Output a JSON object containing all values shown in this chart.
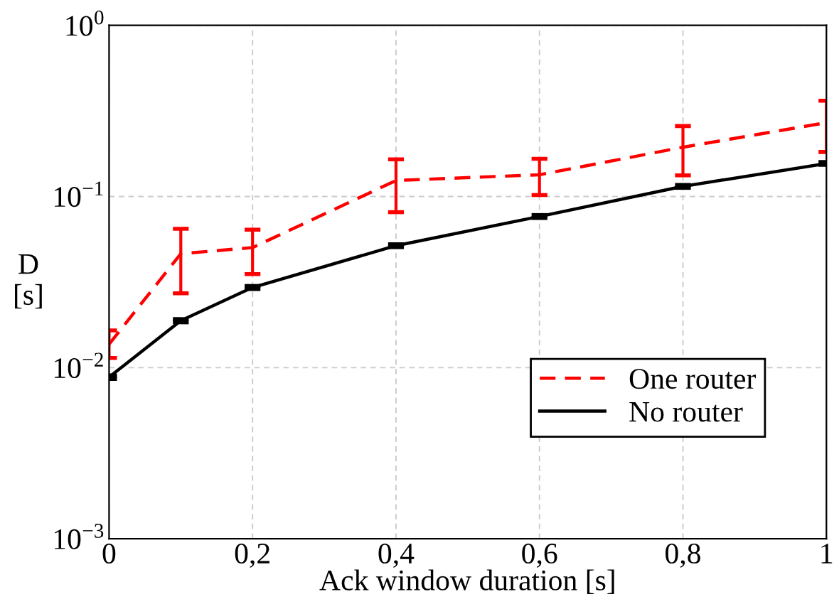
{
  "chart_data": {
    "type": "line",
    "xlabel": "Ack window duration [s]",
    "ylabel": "D\n[s]",
    "x": [
      0,
      0.1,
      0.2,
      0.4,
      0.6,
      0.8,
      1.0
    ],
    "series": [
      {
        "name": "One router",
        "color": "#ff0000",
        "line_style": "dashed",
        "values": [
          0.0137,
          0.0463,
          0.0503,
          0.124,
          0.134,
          0.194,
          0.27
        ],
        "errors": [
          [
            0.0114,
            0.0165
          ],
          [
            0.0272,
            0.0648
          ],
          [
            0.0352,
            0.064
          ],
          [
            0.081,
            0.165
          ],
          [
            0.102,
            0.166
          ],
          [
            0.133,
            0.258
          ],
          [
            0.182,
            0.363
          ]
        ]
      },
      {
        "name": "No router",
        "color": "#000000",
        "line_style": "solid",
        "values": [
          0.0088,
          0.0188,
          0.0294,
          0.0516,
          0.0764,
          0.1146,
          0.156
        ],
        "errors": [
          [
            0.0086,
            0.009
          ],
          [
            0.0184,
            0.0192
          ],
          [
            0.0288,
            0.03
          ],
          [
            0.0506,
            0.0526
          ],
          [
            0.0749,
            0.0779
          ],
          [
            0.1124,
            0.1168
          ],
          [
            0.153,
            0.159
          ]
        ]
      }
    ],
    "log": true,
    "xlim": [
      0,
      1
    ],
    "ylim": [
      0.001,
      1
    ],
    "xticks": [
      {
        "value": 0,
        "label": "0"
      },
      {
        "value": 0.2,
        "label": "0,2"
      },
      {
        "value": 0.4,
        "label": "0,4"
      },
      {
        "value": 0.6,
        "label": "0,6"
      },
      {
        "value": 0.8,
        "label": "0,8"
      },
      {
        "value": 1,
        "label": "1"
      }
    ],
    "yticks": [
      {
        "value": 0.001,
        "label": "10$^{−3}$"
      },
      {
        "value": 0.01,
        "label": "10$^{−2}$"
      },
      {
        "value": 0.1,
        "label": "10$^{−1}$"
      },
      {
        "value": 1,
        "label": "10$^{0}$"
      }
    ],
    "grid": true,
    "legend": "bottom right",
    "marker": "none"
  }
}
